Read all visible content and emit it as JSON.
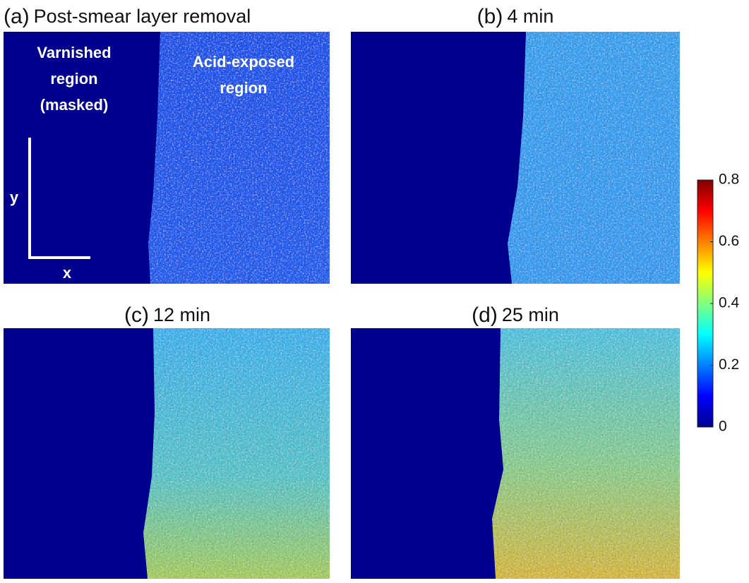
{
  "chart_data": {
    "type": "heatmap",
    "panels": [
      {
        "label": "(a)",
        "title": "Post-smear layer removal"
      },
      {
        "label": "(b)",
        "title": "4 min"
      },
      {
        "label": "(c)",
        "title": "12 min"
      },
      {
        "label": "(d)",
        "title": "25 min"
      }
    ],
    "annotations": {
      "masked": [
        "Varnished",
        "region",
        "(masked)"
      ],
      "exposed": [
        "Acid-exposed",
        "region"
      ],
      "y_axis": "y",
      "x_axis": "x"
    },
    "colorbar": {
      "clim": [
        0,
        0.8
      ],
      "ticks": [
        0,
        0.2,
        0.4,
        0.6,
        0.8
      ],
      "colormap": "jet"
    }
  }
}
